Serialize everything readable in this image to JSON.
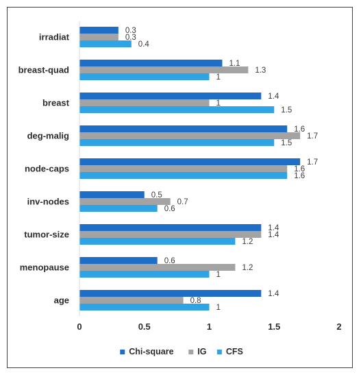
{
  "chart_data": {
    "type": "bar",
    "orientation": "horizontal",
    "categories": [
      "irradiat",
      "breast-quad",
      "breast",
      "deg-malig",
      "node-caps",
      "inv-nodes",
      "tumor-size",
      "menopause",
      "age"
    ],
    "series": [
      {
        "name": "Chi-square",
        "color": "#1f6dc5",
        "values": [
          0.3,
          1.1,
          1.4,
          1.6,
          1.7,
          0.5,
          1.4,
          0.6,
          1.4
        ]
      },
      {
        "name": "IG",
        "color": "#a3a3a3",
        "values": [
          0.3,
          1.3,
          1.0,
          1.7,
          1.6,
          0.7,
          1.4,
          1.2,
          0.8
        ]
      },
      {
        "name": "CFS",
        "color": "#2ea3e6",
        "values": [
          0.4,
          1.0,
          1.5,
          1.5,
          1.6,
          0.6,
          1.2,
          1.0,
          1.0
        ]
      }
    ],
    "data_labels": [
      [
        "0.3",
        "1.1",
        "1.4",
        "1.6",
        "1.7",
        "0.5",
        "1.4",
        "0.6",
        "1.4"
      ],
      [
        "0.3",
        "1.3",
        "1",
        "1.7",
        "1.6",
        "0.7",
        "1.4",
        "1.2",
        "0.8"
      ],
      [
        "0.4",
        "1",
        "1.5",
        "1.5",
        "1.6",
        "0.6",
        "1.2",
        "1",
        "1"
      ]
    ],
    "x_ticks": [
      "0",
      "0.5",
      "1",
      "1.5",
      "2"
    ],
    "xlim": [
      0,
      2
    ],
    "title": "",
    "xlabel": "",
    "ylabel": "",
    "grid": false,
    "legend_position": "bottom"
  }
}
